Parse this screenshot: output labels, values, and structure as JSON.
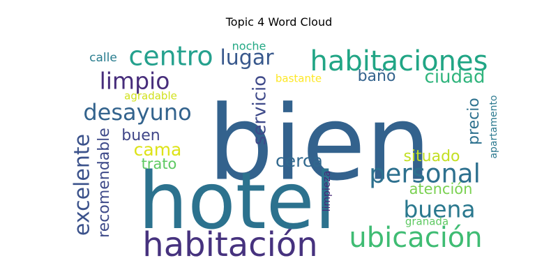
{
  "chart_data": {
    "type": "wordcloud",
    "title": "Topic 4 Word Cloud",
    "words": [
      {
        "text": "bien",
        "weight": 1.0,
        "color": "#33628d"
      },
      {
        "text": "hotel",
        "weight": 0.95,
        "color": "#2c728e"
      },
      {
        "text": "habitación",
        "weight": 0.42,
        "color": "#46327e"
      },
      {
        "text": "habitaciones",
        "weight": 0.38,
        "color": "#21a585"
      },
      {
        "text": "ubicación",
        "weight": 0.36,
        "color": "#3fbc73"
      },
      {
        "text": "centro",
        "weight": 0.32,
        "color": "#25a18e"
      },
      {
        "text": "personal",
        "weight": 0.32,
        "color": "#2d708e"
      },
      {
        "text": "excelente",
        "weight": 0.3,
        "color": "#3b528b"
      },
      {
        "text": "buena",
        "weight": 0.29,
        "color": "#2a788e"
      },
      {
        "text": "limpio",
        "weight": 0.28,
        "color": "#472d7b"
      },
      {
        "text": "desayuno",
        "weight": 0.28,
        "color": "#33638d"
      },
      {
        "text": "lugar",
        "weight": 0.26,
        "color": "#38588c"
      },
      {
        "text": "ciudad",
        "weight": 0.24,
        "color": "#2fb47c"
      },
      {
        "text": "servicio",
        "weight": 0.24,
        "color": "#3e4989"
      },
      {
        "text": "cama",
        "weight": 0.23,
        "color": "#dde318"
      },
      {
        "text": "cerca",
        "weight": 0.23,
        "color": "#31688e"
      },
      {
        "text": "recomendable",
        "weight": 0.22,
        "color": "#3e4a89"
      },
      {
        "text": "precio",
        "weight": 0.21,
        "color": "#2d718e"
      },
      {
        "text": "buen",
        "weight": 0.21,
        "color": "#404688"
      },
      {
        "text": "baño",
        "weight": 0.21,
        "color": "#33638d"
      },
      {
        "text": "situado",
        "weight": 0.21,
        "color": "#c2df23"
      },
      {
        "text": "trato",
        "weight": 0.2,
        "color": "#5ec962"
      },
      {
        "text": "atención",
        "weight": 0.19,
        "color": "#7ad151"
      },
      {
        "text": "calle",
        "weight": 0.15,
        "color": "#287c8e"
      },
      {
        "text": "noche",
        "weight": 0.14,
        "color": "#22a884"
      },
      {
        "text": "bastante",
        "weight": 0.14,
        "color": "#fde725"
      },
      {
        "text": "agradable",
        "weight": 0.14,
        "color": "#d0e11c"
      },
      {
        "text": "apartamento",
        "weight": 0.14,
        "color": "#2a788e"
      },
      {
        "text": "granada",
        "weight": 0.14,
        "color": "#5ec962"
      },
      {
        "text": "limpieza",
        "weight": 0.13,
        "color": "#482878"
      }
    ]
  }
}
